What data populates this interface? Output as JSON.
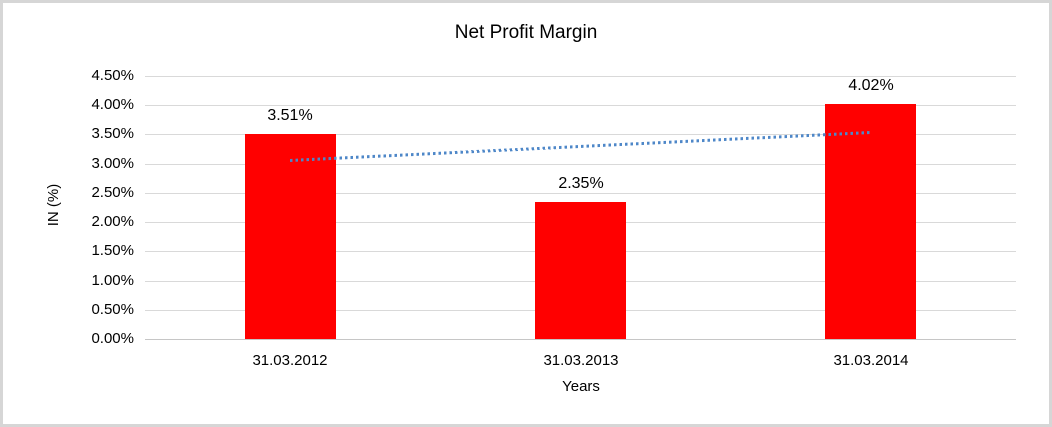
{
  "window": {
    "background": "#ffffff",
    "border_color": "#d6d6d6"
  },
  "chart_data": {
    "type": "bar",
    "title": "Net Profit Margin",
    "xlabel": "Years",
    "ylabel": "IN (%)",
    "categories": [
      "31.03.2012",
      "31.03.2013",
      "31.03.2014"
    ],
    "values": [
      3.51,
      2.35,
      4.02
    ],
    "data_labels": [
      "3.51%",
      "2.35%",
      "4.02%"
    ],
    "ylim": [
      0,
      4.5
    ],
    "ytick_step": 0.5,
    "ytick_labels": [
      "0.00%",
      "0.50%",
      "1.00%",
      "1.50%",
      "2.00%",
      "2.50%",
      "3.00%",
      "3.50%",
      "4.00%",
      "4.50%"
    ],
    "grid": true,
    "legend": "none",
    "bar_color": "#ff0000",
    "trendline": {
      "style": "dotted",
      "color": "#4e87c8",
      "start_value": 3.05,
      "end_value": 3.53
    }
  },
  "colors": {
    "gridline": "#d9d9d9",
    "axis_line": "#c6c6c6",
    "text": "#000000"
  }
}
